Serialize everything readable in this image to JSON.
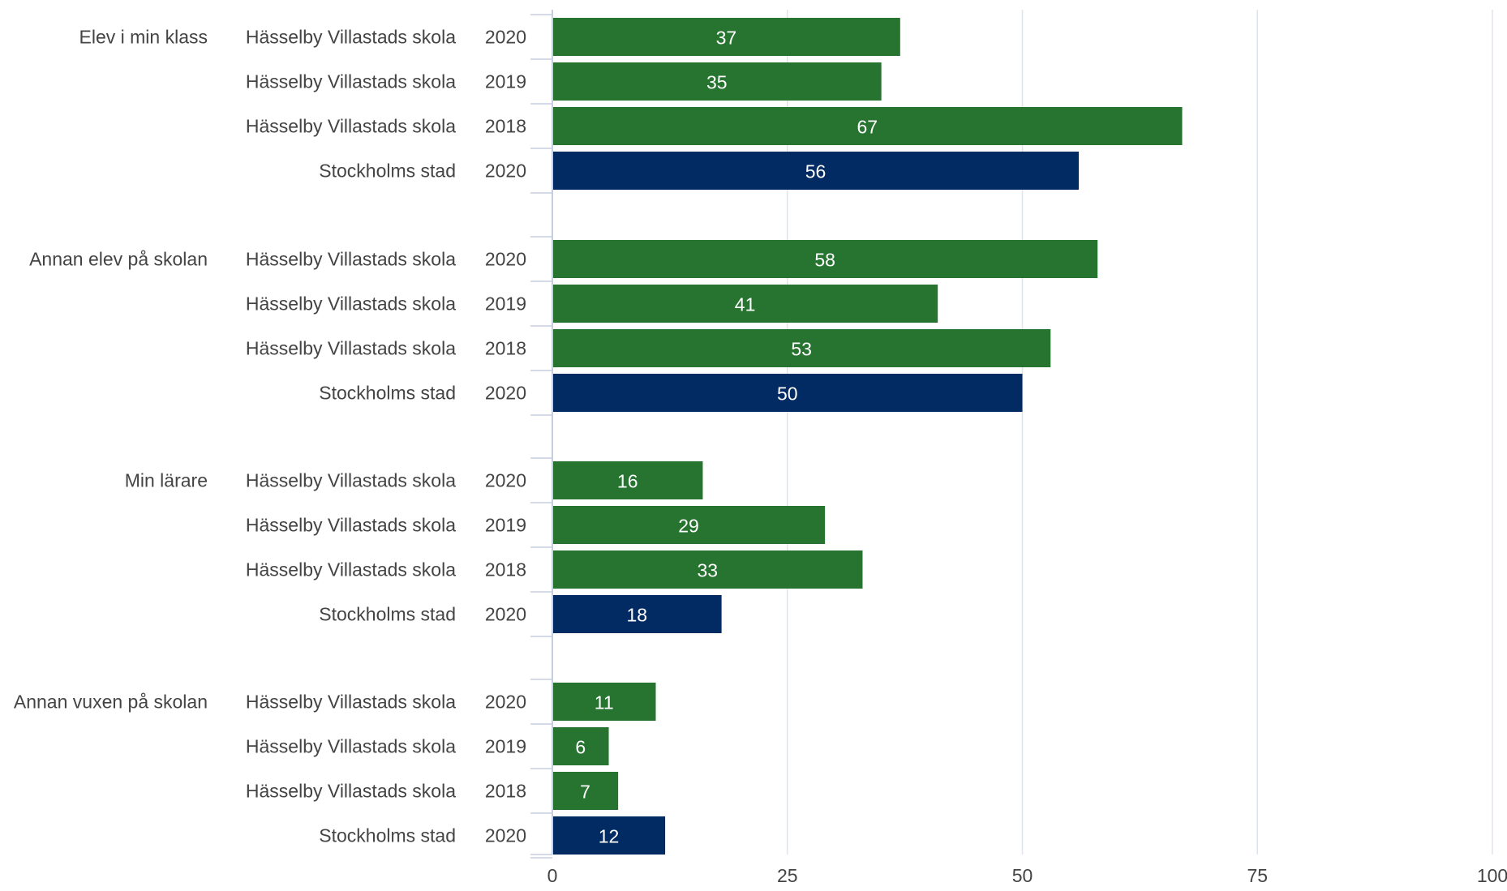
{
  "chart_data": {
    "type": "bar",
    "orientation": "horizontal",
    "xlim": [
      0,
      100
    ],
    "xticks": [
      "0",
      "25",
      "50",
      "75",
      "100"
    ],
    "grid": true,
    "colors": {
      "school": "#277430",
      "city": "#032b63"
    },
    "groups": [
      {
        "name": "Elev i min klass",
        "rows": [
          {
            "entity": "Hässelby Villastads skola",
            "year": "2020",
            "value": 37,
            "kind": "school"
          },
          {
            "entity": "Hässelby Villastads skola",
            "year": "2019",
            "value": 35,
            "kind": "school"
          },
          {
            "entity": "Hässelby Villastads skola",
            "year": "2018",
            "value": 67,
            "kind": "school"
          },
          {
            "entity": "Stockholms stad",
            "year": "2020",
            "value": 56,
            "kind": "city"
          }
        ]
      },
      {
        "name": "Annan elev på skolan",
        "rows": [
          {
            "entity": "Hässelby Villastads skola",
            "year": "2020",
            "value": 58,
            "kind": "school"
          },
          {
            "entity": "Hässelby Villastads skola",
            "year": "2019",
            "value": 41,
            "kind": "school"
          },
          {
            "entity": "Hässelby Villastads skola",
            "year": "2018",
            "value": 53,
            "kind": "school"
          },
          {
            "entity": "Stockholms stad",
            "year": "2020",
            "value": 50,
            "kind": "city"
          }
        ]
      },
      {
        "name": "Min lärare",
        "rows": [
          {
            "entity": "Hässelby Villastads skola",
            "year": "2020",
            "value": 16,
            "kind": "school"
          },
          {
            "entity": "Hässelby Villastads skola",
            "year": "2019",
            "value": 29,
            "kind": "school"
          },
          {
            "entity": "Hässelby Villastads skola",
            "year": "2018",
            "value": 33,
            "kind": "school"
          },
          {
            "entity": "Stockholms stad",
            "year": "2020",
            "value": 18,
            "kind": "city"
          }
        ]
      },
      {
        "name": "Annan vuxen på skolan",
        "rows": [
          {
            "entity": "Hässelby Villastads skola",
            "year": "2020",
            "value": 11,
            "kind": "school"
          },
          {
            "entity": "Hässelby Villastads skola",
            "year": "2019",
            "value": 6,
            "kind": "school"
          },
          {
            "entity": "Hässelby Villastads skola",
            "year": "2018",
            "value": 7,
            "kind": "school"
          },
          {
            "entity": "Stockholms stad",
            "year": "2020",
            "value": 12,
            "kind": "city"
          }
        ]
      }
    ]
  }
}
